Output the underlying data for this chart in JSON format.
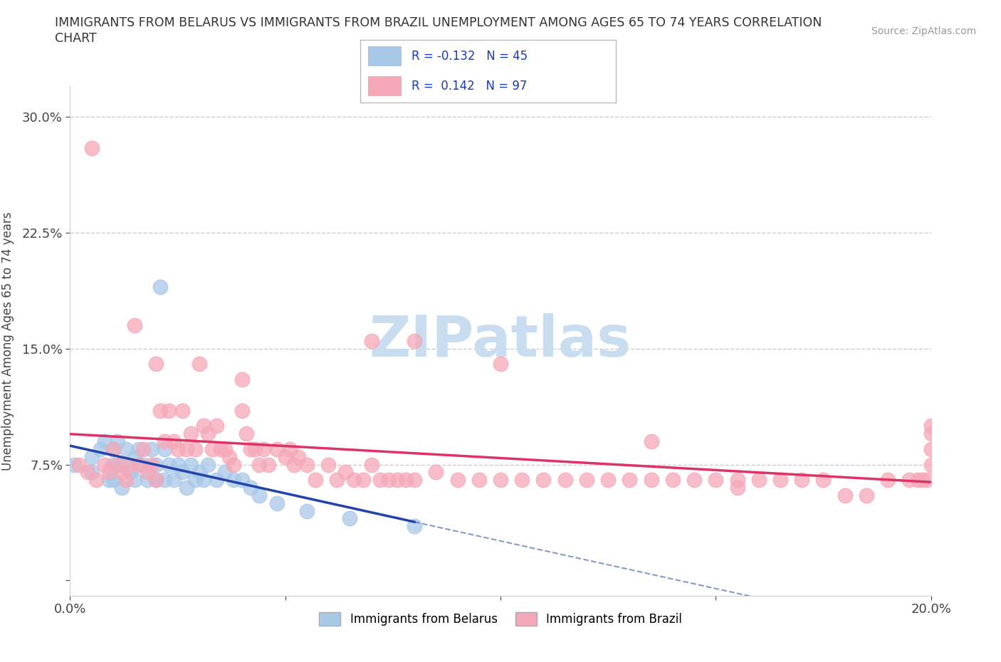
{
  "title_line1": "IMMIGRANTS FROM BELARUS VS IMMIGRANTS FROM BRAZIL UNEMPLOYMENT AMONG AGES 65 TO 74 YEARS CORRELATION",
  "title_line2": "CHART",
  "source": "Source: ZipAtlas.com",
  "ylabel": "Unemployment Among Ages 65 to 74 years",
  "xlim": [
    0.0,
    0.2
  ],
  "ylim": [
    -0.01,
    0.32
  ],
  "yticks": [
    0.0,
    0.075,
    0.15,
    0.225,
    0.3
  ],
  "yticklabels": [
    "",
    "7.5%",
    "15.0%",
    "22.5%",
    "30.0%"
  ],
  "xticks": [
    0.0,
    0.05,
    0.1,
    0.15,
    0.2
  ],
  "xticklabels": [
    "0.0%",
    "",
    "",
    "",
    "20.0%"
  ],
  "r_belarus": "-0.132",
  "n_belarus": 45,
  "r_brazil": "0.142",
  "n_brazil": 97,
  "color_belarus": "#a8c8e8",
  "color_brazil": "#f5a8b8",
  "trendline_belarus_color": "#2244aa",
  "trendline_brazil_color": "#dd3366",
  "legend_r_color": "#1a3ab5",
  "legend_box_color": "#cccccc",
  "watermark_color": "#c8ddf0",
  "grid_color": "#cccccc",
  "belarus_x": [
    0.001,
    0.005,
    0.005,
    0.007,
    0.008,
    0.009,
    0.01,
    0.01,
    0.01,
    0.011,
    0.012,
    0.012,
    0.013,
    0.014,
    0.015,
    0.015,
    0.016,
    0.017,
    0.018,
    0.019,
    0.02,
    0.02,
    0.021,
    0.022,
    0.022,
    0.023,
    0.024,
    0.025,
    0.026,
    0.027,
    0.028,
    0.029,
    0.03,
    0.031,
    0.032,
    0.034,
    0.036,
    0.038,
    0.04,
    0.042,
    0.044,
    0.048,
    0.055,
    0.065,
    0.08
  ],
  "belarus_y": [
    0.075,
    0.08,
    0.07,
    0.085,
    0.09,
    0.065,
    0.085,
    0.075,
    0.065,
    0.09,
    0.075,
    0.06,
    0.085,
    0.07,
    0.08,
    0.065,
    0.085,
    0.075,
    0.065,
    0.085,
    0.075,
    0.065,
    0.19,
    0.085,
    0.065,
    0.075,
    0.065,
    0.075,
    0.07,
    0.06,
    0.075,
    0.065,
    0.07,
    0.065,
    0.075,
    0.065,
    0.07,
    0.065,
    0.065,
    0.06,
    0.055,
    0.05,
    0.045,
    0.04,
    0.035
  ],
  "belarus_trendline_x_end": 0.08,
  "brazil_x": [
    0.002,
    0.004,
    0.006,
    0.008,
    0.009,
    0.01,
    0.011,
    0.012,
    0.013,
    0.014,
    0.015,
    0.016,
    0.017,
    0.018,
    0.019,
    0.02,
    0.02,
    0.021,
    0.022,
    0.023,
    0.024,
    0.025,
    0.026,
    0.027,
    0.028,
    0.029,
    0.03,
    0.031,
    0.032,
    0.033,
    0.034,
    0.035,
    0.036,
    0.037,
    0.038,
    0.04,
    0.041,
    0.042,
    0.043,
    0.044,
    0.045,
    0.046,
    0.048,
    0.05,
    0.051,
    0.052,
    0.053,
    0.055,
    0.057,
    0.06,
    0.062,
    0.064,
    0.066,
    0.068,
    0.07,
    0.072,
    0.074,
    0.076,
    0.078,
    0.08,
    0.085,
    0.09,
    0.095,
    0.1,
    0.105,
    0.11,
    0.115,
    0.12,
    0.125,
    0.13,
    0.135,
    0.14,
    0.145,
    0.15,
    0.155,
    0.16,
    0.165,
    0.17,
    0.175,
    0.18,
    0.185,
    0.19,
    0.195,
    0.197,
    0.198,
    0.199,
    0.2,
    0.2,
    0.2,
    0.2,
    0.005,
    0.07,
    0.04,
    0.08,
    0.1,
    0.135,
    0.155
  ],
  "brazil_y": [
    0.075,
    0.07,
    0.065,
    0.075,
    0.07,
    0.085,
    0.075,
    0.07,
    0.065,
    0.075,
    0.165,
    0.075,
    0.085,
    0.07,
    0.075,
    0.14,
    0.065,
    0.11,
    0.09,
    0.11,
    0.09,
    0.085,
    0.11,
    0.085,
    0.095,
    0.085,
    0.14,
    0.1,
    0.095,
    0.085,
    0.1,
    0.085,
    0.085,
    0.08,
    0.075,
    0.11,
    0.095,
    0.085,
    0.085,
    0.075,
    0.085,
    0.075,
    0.085,
    0.08,
    0.085,
    0.075,
    0.08,
    0.075,
    0.065,
    0.075,
    0.065,
    0.07,
    0.065,
    0.065,
    0.075,
    0.065,
    0.065,
    0.065,
    0.065,
    0.065,
    0.07,
    0.065,
    0.065,
    0.065,
    0.065,
    0.065,
    0.065,
    0.065,
    0.065,
    0.065,
    0.065,
    0.065,
    0.065,
    0.065,
    0.065,
    0.065,
    0.065,
    0.065,
    0.065,
    0.055,
    0.055,
    0.065,
    0.065,
    0.065,
    0.065,
    0.065,
    0.075,
    0.085,
    0.095,
    0.1,
    0.28,
    0.155,
    0.13,
    0.155,
    0.14,
    0.09,
    0.06
  ]
}
